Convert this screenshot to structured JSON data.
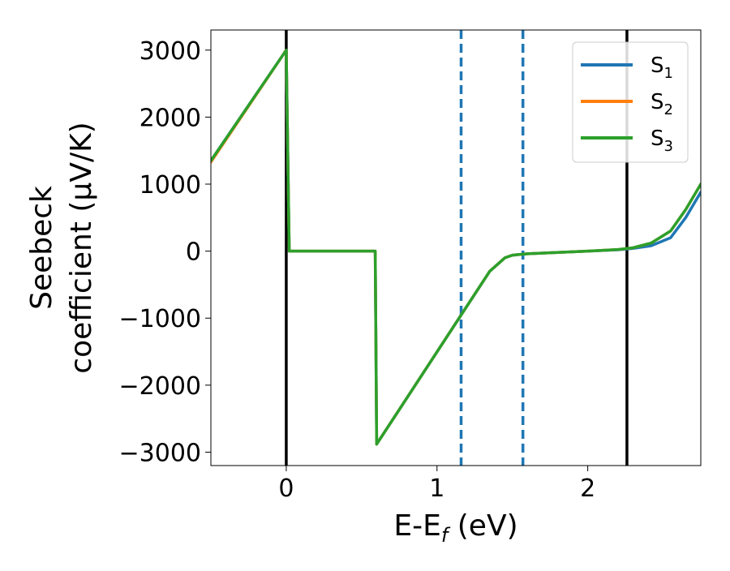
{
  "chart_data": {
    "type": "line",
    "xlabel": "E-E",
    "xlabel_sub": "f",
    "xlabel_unit": " (eV)",
    "ylabel_line1": "Seebeck",
    "ylabel_line2": "coefficient  (μV/K)",
    "xlim": [
      -0.5,
      2.75
    ],
    "ylim": [
      -3200,
      3300
    ],
    "xticks": [
      0,
      1,
      2
    ],
    "xtick_labels": [
      "0",
      "1",
      "2"
    ],
    "yticks": [
      -3000,
      -2000,
      -1000,
      0,
      1000,
      2000,
      3000
    ],
    "ytick_labels": [
      "−3000",
      "−2000",
      "−1000",
      "0",
      "1000",
      "2000",
      "3000"
    ],
    "grid": false,
    "legend_position": "top-right",
    "vlines_solid": [
      0,
      2.26
    ],
    "vlines_dashed": [
      1.16,
      1.57
    ],
    "series": [
      {
        "name": "S",
        "sub": "1",
        "color": "#1f77b4",
        "points": [
          [
            -0.5,
            1350
          ],
          [
            0,
            3000
          ],
          [
            0.02,
            0
          ],
          [
            0.59,
            0
          ],
          [
            0.6,
            -2880
          ],
          [
            1.35,
            -300
          ],
          [
            1.45,
            -100
          ],
          [
            1.5,
            -60
          ],
          [
            1.6,
            -40
          ],
          [
            1.8,
            -20
          ],
          [
            2.0,
            0
          ],
          [
            2.2,
            20
          ],
          [
            2.3,
            40
          ],
          [
            2.42,
            80
          ],
          [
            2.55,
            200
          ],
          [
            2.65,
            500
          ],
          [
            2.75,
            880
          ]
        ]
      },
      {
        "name": "S",
        "sub": "2",
        "color": "#ff7f0e",
        "points": [
          [
            -0.5,
            1330
          ],
          [
            0,
            3000
          ],
          [
            0.02,
            0
          ],
          [
            0.59,
            0
          ],
          [
            0.6,
            -2880
          ],
          [
            1.35,
            -300
          ],
          [
            1.45,
            -100
          ],
          [
            1.5,
            -60
          ],
          [
            1.6,
            -40
          ],
          [
            1.8,
            -20
          ],
          [
            2.0,
            0
          ],
          [
            2.2,
            25
          ],
          [
            2.3,
            50
          ],
          [
            2.42,
            120
          ],
          [
            2.55,
            300
          ],
          [
            2.65,
            620
          ],
          [
            2.75,
            1000
          ]
        ]
      },
      {
        "name": "S",
        "sub": "3",
        "color": "#2ca02c",
        "points": [
          [
            -0.5,
            1350
          ],
          [
            0,
            3000
          ],
          [
            0.02,
            0
          ],
          [
            0.59,
            0
          ],
          [
            0.6,
            -2880
          ],
          [
            1.35,
            -300
          ],
          [
            1.45,
            -100
          ],
          [
            1.5,
            -60
          ],
          [
            1.6,
            -40
          ],
          [
            1.8,
            -20
          ],
          [
            2.0,
            0
          ],
          [
            2.2,
            25
          ],
          [
            2.3,
            50
          ],
          [
            2.42,
            120
          ],
          [
            2.55,
            300
          ],
          [
            2.65,
            620
          ],
          [
            2.75,
            1000
          ]
        ]
      }
    ]
  }
}
